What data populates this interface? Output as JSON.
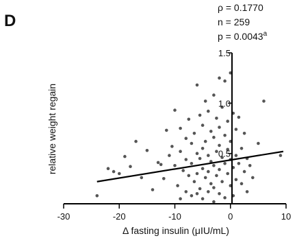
{
  "panel_label": "D",
  "stats": {
    "rho": "ρ = 0.1770",
    "n": "n = 259",
    "p": "p = 0.0043",
    "p_superscript": "a"
  },
  "colors": {
    "points": "#555555",
    "axes": "#000000"
  },
  "chart_data": {
    "type": "scatter",
    "xlabel": "Δ fasting insulin (μIU/mL)",
    "ylabel": "relative weight regain",
    "xlim": [
      -30,
      10
    ],
    "ylim": [
      0.0,
      1.5
    ],
    "x_ticks": [
      "-30",
      "-20",
      "-10",
      "0",
      "10"
    ],
    "y_ticks": [
      "0.5",
      "1.0",
      "1.5"
    ],
    "y_tick_values": [
      0.5,
      1.0,
      1.5
    ],
    "grid": false,
    "regression_line": {
      "x1": -24,
      "y1": 0.22,
      "x2": 9.5,
      "y2": 0.52
    },
    "points": [
      {
        "x": -24,
        "y": 0.08
      },
      {
        "x": -22,
        "y": 0.35
      },
      {
        "x": -21,
        "y": 0.32
      },
      {
        "x": -20,
        "y": 0.3
      },
      {
        "x": -19,
        "y": 0.47
      },
      {
        "x": -18,
        "y": 0.37
      },
      {
        "x": -17,
        "y": 0.62
      },
      {
        "x": -16,
        "y": 0.26
      },
      {
        "x": -15,
        "y": 0.53
      },
      {
        "x": -14,
        "y": 0.14
      },
      {
        "x": -13,
        "y": 0.41
      },
      {
        "x": -12.5,
        "y": 0.39
      },
      {
        "x": -12,
        "y": 0.25
      },
      {
        "x": -11.5,
        "y": 0.73
      },
      {
        "x": -11,
        "y": 0.48
      },
      {
        "x": -10.5,
        "y": 0.57
      },
      {
        "x": -10,
        "y": 0.93
      },
      {
        "x": -10,
        "y": 0.38
      },
      {
        "x": -9.5,
        "y": 0.18
      },
      {
        "x": -9,
        "y": 0.75
      },
      {
        "x": -9,
        "y": 0.52
      },
      {
        "x": -9,
        "y": 0.05
      },
      {
        "x": -8.5,
        "y": 0.33
      },
      {
        "x": -8,
        "y": 0.65
      },
      {
        "x": -8,
        "y": 0.44
      },
      {
        "x": -8,
        "y": 0.12
      },
      {
        "x": -7.5,
        "y": 0.84
      },
      {
        "x": -7.5,
        "y": 0.28
      },
      {
        "x": -7,
        "y": 0.6
      },
      {
        "x": -7,
        "y": 0.4
      },
      {
        "x": -7,
        "y": 0.08
      },
      {
        "x": -6.5,
        "y": 0.7
      },
      {
        "x": -6.5,
        "y": 0.22
      },
      {
        "x": -6,
        "y": 1.18
      },
      {
        "x": -6,
        "y": 0.5
      },
      {
        "x": -6,
        "y": 0.3
      },
      {
        "x": -6,
        "y": 0.1
      },
      {
        "x": -5.5,
        "y": 0.88
      },
      {
        "x": -5.5,
        "y": 0.45
      },
      {
        "x": -5.5,
        "y": 0.15
      },
      {
        "x": -5,
        "y": 0.78
      },
      {
        "x": -5,
        "y": 0.55
      },
      {
        "x": -5,
        "y": 0.35
      },
      {
        "x": -5,
        "y": 0.05
      },
      {
        "x": -4.5,
        "y": 1.02
      },
      {
        "x": -4.5,
        "y": 0.62
      },
      {
        "x": -4.5,
        "y": 0.26
      },
      {
        "x": -4,
        "y": 0.92
      },
      {
        "x": -4,
        "y": 0.48
      },
      {
        "x": -4,
        "y": 0.32
      },
      {
        "x": -4,
        "y": 0.12
      },
      {
        "x": -3.5,
        "y": 0.72
      },
      {
        "x": -3.5,
        "y": 0.42
      },
      {
        "x": -3.5,
        "y": 0.2
      },
      {
        "x": -3,
        "y": 1.08
      },
      {
        "x": -3,
        "y": 0.66
      },
      {
        "x": -3,
        "y": 0.38
      },
      {
        "x": -3,
        "y": 0.16
      },
      {
        "x": -3,
        "y": 0.02
      },
      {
        "x": -2.5,
        "y": 0.85
      },
      {
        "x": -2.5,
        "y": 0.52
      },
      {
        "x": -2.5,
        "y": 0.28
      },
      {
        "x": -2,
        "y": 1.25
      },
      {
        "x": -2,
        "y": 0.76
      },
      {
        "x": -2,
        "y": 0.58
      },
      {
        "x": -2,
        "y": 0.34
      },
      {
        "x": -2,
        "y": 0.1
      },
      {
        "x": -1.5,
        "y": 0.96
      },
      {
        "x": -1.5,
        "y": 0.46
      },
      {
        "x": -1.5,
        "y": 0.22
      },
      {
        "x": -1,
        "y": 1.22
      },
      {
        "x": -1,
        "y": 0.68
      },
      {
        "x": -1,
        "y": 0.4
      },
      {
        "x": -1,
        "y": 0.06
      },
      {
        "x": -0.5,
        "y": 0.82
      },
      {
        "x": -0.5,
        "y": 0.54
      },
      {
        "x": -0.5,
        "y": 0.3
      },
      {
        "x": 0,
        "y": 1.3
      },
      {
        "x": 0,
        "y": 0.62
      },
      {
        "x": 0,
        "y": 0.44
      },
      {
        "x": 0,
        "y": 0.18
      },
      {
        "x": 0.5,
        "y": 0.9
      },
      {
        "x": 0.5,
        "y": 0.36
      },
      {
        "x": 0.5,
        "y": 0.08
      },
      {
        "x": 1,
        "y": 0.74
      },
      {
        "x": 1,
        "y": 0.48
      },
      {
        "x": 1,
        "y": 0.24
      },
      {
        "x": 1.5,
        "y": 0.86
      },
      {
        "x": 1.5,
        "y": 0.4
      },
      {
        "x": 2,
        "y": 0.55
      },
      {
        "x": 2,
        "y": 0.2
      },
      {
        "x": 2.5,
        "y": 0.7
      },
      {
        "x": 2.5,
        "y": 0.32
      },
      {
        "x": 3,
        "y": 0.45
      },
      {
        "x": 3,
        "y": 0.12
      },
      {
        "x": 3.5,
        "y": 0.38
      },
      {
        "x": 4,
        "y": 0.26
      },
      {
        "x": 5,
        "y": 0.6
      },
      {
        "x": 6,
        "y": 1.02
      },
      {
        "x": 9,
        "y": 0.48
      }
    ]
  }
}
